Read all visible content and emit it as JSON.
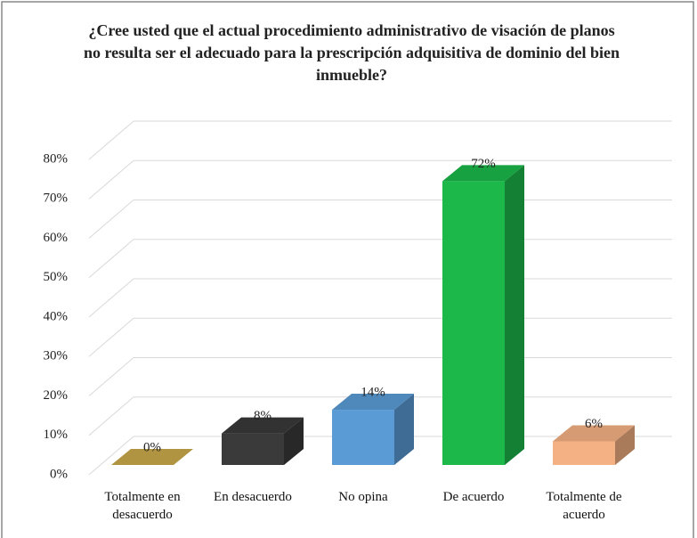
{
  "chart_data": {
    "type": "bar3d",
    "title": "¿Cree usted que el actual procedimiento administrativo de visación de planos no resulta ser el adecuado para la prescripción adquisitiva de dominio del bien inmueble?",
    "categories": [
      "Totalmente en desacuerdo",
      "En desacuerdo",
      "No opina",
      "De acuerdo",
      "Totalmente de acuerdo"
    ],
    "values": [
      0,
      8,
      14,
      72,
      6
    ],
    "value_labels": [
      "0%",
      "8%",
      "14%",
      "72%",
      "6%"
    ],
    "colors": [
      "#c9a94a",
      "#3a3a3a",
      "#5b9bd5",
      "#1cb84a",
      "#f4b183"
    ],
    "ylim": [
      0,
      80
    ],
    "yticks": [
      {
        "value": 0,
        "label": "0%"
      },
      {
        "value": 10,
        "label": "10%"
      },
      {
        "value": 20,
        "label": "20%"
      },
      {
        "value": 30,
        "label": "30%"
      },
      {
        "value": 40,
        "label": "40%"
      },
      {
        "value": 50,
        "label": "50%"
      },
      {
        "value": 60,
        "label": "60%"
      },
      {
        "value": 70,
        "label": "70%"
      },
      {
        "value": 80,
        "label": "80%"
      }
    ],
    "grid": true
  }
}
